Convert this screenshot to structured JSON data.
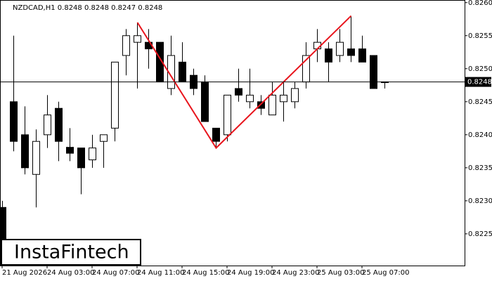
{
  "chart_data": {
    "type": "candlestick",
    "title": "NZDCAD,H1  0.8248 0.8248 0.8247 0.8248",
    "watermark": "InstaFintech",
    "categories": [
      "21 Aug 2026",
      null,
      null,
      null,
      "24 Aug 03:00",
      null,
      null,
      null,
      "24 Aug 07:00",
      null,
      null,
      null,
      "24 Aug 11:00",
      null,
      null,
      null,
      "24 Aug 15:00",
      null,
      null,
      null,
      "24 Aug 19:00",
      null,
      null,
      null,
      "24 Aug 23:00",
      null,
      null,
      null,
      "25 Aug 03:00",
      null,
      null,
      null,
      "25 Aug 07:00",
      null,
      null
    ],
    "open": [
      0.8229,
      0.8245,
      0.824,
      0.8234,
      0.824,
      0.8244,
      0.82381,
      0.8238,
      0.82362,
      0.8239,
      0.8241,
      0.8252,
      0.8254,
      0.8254,
      0.8254,
      0.8247,
      0.8251,
      0.8249,
      0.8248,
      0.8241,
      0.824,
      0.8247,
      0.8245,
      0.8245,
      0.8243,
      0.8245,
      0.8245,
      0.8248,
      0.8253,
      0.8253,
      0.8252,
      0.8253,
      0.8253,
      0.8252,
      0.8248
    ],
    "high": [
      0.823,
      0.8255,
      0.82443,
      0.82408,
      0.8246,
      0.8245,
      0.8241,
      0.8238,
      0.824,
      0.824,
      0.8251,
      0.8256,
      0.8257,
      0.8256,
      0.8254,
      0.8255,
      0.8254,
      0.825,
      0.8249,
      0.8241,
      0.8246,
      0.825,
      0.825,
      0.8246,
      0.8248,
      0.8248,
      0.8248,
      0.8254,
      0.8256,
      0.8254,
      0.8256,
      0.8258,
      0.8255,
      0.8252,
      0.8248
    ],
    "low": [
      0.8219,
      0.82375,
      0.8234,
      0.8229,
      0.8238,
      0.8236,
      0.8236,
      0.8231,
      0.8235,
      0.8235,
      0.8239,
      0.8249,
      0.8247,
      0.825,
      0.8248,
      0.8246,
      0.8248,
      0.8246,
      0.8242,
      0.8238,
      0.8239,
      0.8245,
      0.8244,
      0.8243,
      0.8243,
      0.8242,
      0.8244,
      0.8247,
      0.8251,
      0.8248,
      0.8251,
      0.8251,
      0.8251,
      0.8247,
      0.8247
    ],
    "close": [
      0.822,
      0.8239,
      0.8235,
      0.8239,
      0.8243,
      0.8239,
      0.82372,
      0.8235,
      0.8238,
      0.824,
      0.8251,
      0.8255,
      0.8255,
      0.8253,
      0.8248,
      0.8252,
      0.8248,
      0.8247,
      0.8242,
      0.8239,
      0.8246,
      0.8246,
      0.8246,
      0.8244,
      0.8246,
      0.8246,
      0.8247,
      0.8252,
      0.8254,
      0.8251,
      0.8254,
      0.8252,
      0.8251,
      0.8247,
      0.8248
    ],
    "ylim": [
      0.82202,
      0.82604
    ],
    "yticks": [
      0.8225,
      {
        "value": 0.823,
        "label": "0.8230"
      },
      0.8235,
      {
        "value": 0.824,
        "label": "0.8240"
      },
      0.8245,
      {
        "value": 0.825,
        "label": "0.8250"
      },
      0.8255,
      {
        "value": 0.826,
        "label": "0.8260"
      }
    ],
    "current_price": 0.8248,
    "pattern": {
      "color": "#e8141c",
      "x": [
        12,
        19,
        31
      ],
      "y": [
        0.8257,
        0.8238,
        0.8258
      ]
    }
  }
}
